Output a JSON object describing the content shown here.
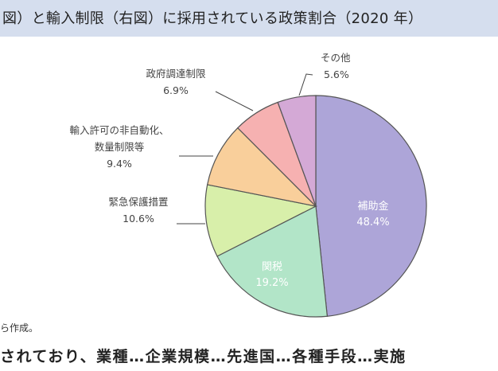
{
  "header": {
    "title": "図）と輸入制限（右図）に採用されている政策割合（2020 年）"
  },
  "footer": {
    "source_note": "ら作成。",
    "cut_text": "されており、業種…企業規模…先進国…各種手段…実施"
  },
  "chart_data": {
    "type": "pie",
    "title": "",
    "slices": [
      {
        "label": "補助金",
        "value": 48.4,
        "display": "48.4%",
        "color": "#ada5d8"
      },
      {
        "label": "関税",
        "value": 19.2,
        "display": "19.2%",
        "color": "#b2e5c8"
      },
      {
        "label": "緊急保護措置",
        "value": 10.6,
        "display": "10.6%",
        "color": "#d8efaa"
      },
      {
        "label": "輸入許可の非自動化、数量制限等",
        "label_lines": [
          "輸入許可の非自動化、",
          "数量制限等"
        ],
        "value": 9.4,
        "display": "9.4%",
        "color": "#f9cf9b"
      },
      {
        "label": "政府調達制限",
        "value": 6.9,
        "display": "6.9%",
        "color": "#f6b1b1"
      },
      {
        "label": "その他",
        "value": 5.6,
        "display": "5.6%",
        "color": "#d4a9d6"
      }
    ],
    "start": "12 o'clock",
    "direction": "clockwise",
    "legend": "none"
  }
}
